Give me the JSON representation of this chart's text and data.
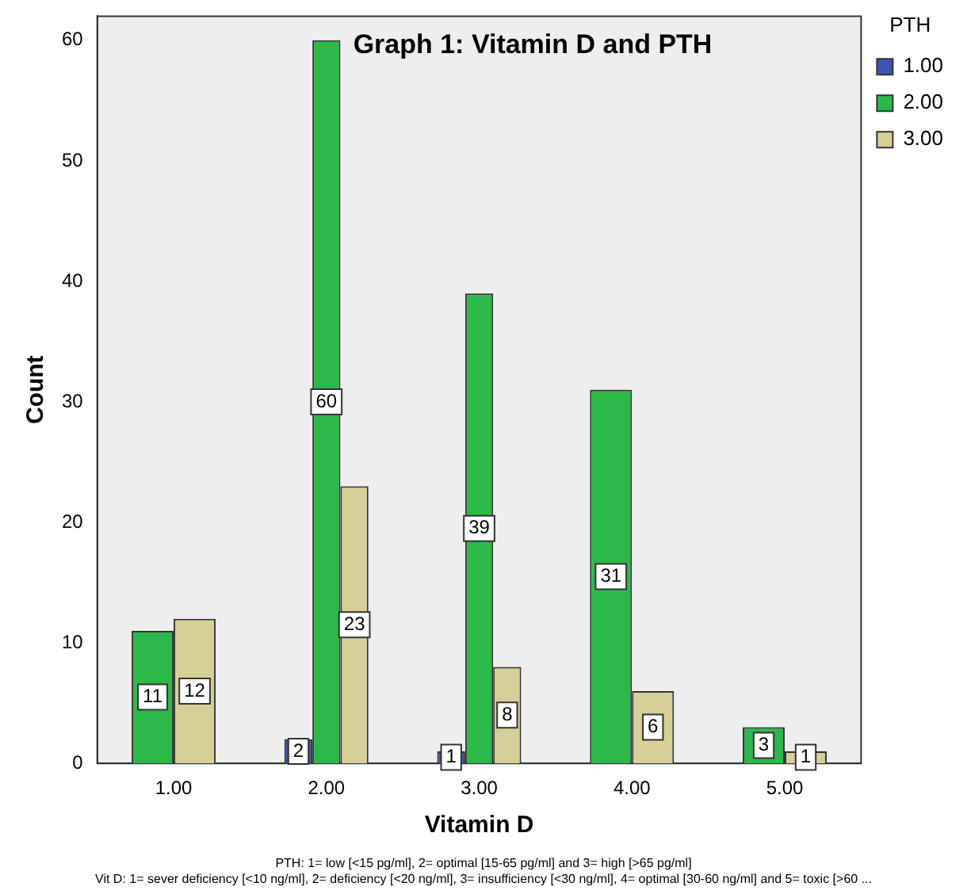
{
  "chart_data": {
    "type": "bar",
    "title": "Graph 1: Vitamin D and PTH",
    "xlabel": "Vitamin D",
    "ylabel": "Count",
    "legend_title": "PTH",
    "categories": [
      "1.00",
      "2.00",
      "3.00",
      "4.00",
      "5.00"
    ],
    "series": [
      {
        "name": "1.00",
        "color": "#3b55b0",
        "values": [
          null,
          2,
          1,
          null,
          null
        ]
      },
      {
        "name": "2.00",
        "color": "#2db84a",
        "values": [
          11,
          60,
          39,
          31,
          3
        ]
      },
      {
        "name": "3.00",
        "color": "#d6cf98",
        "values": [
          12,
          23,
          8,
          6,
          1
        ]
      }
    ],
    "ylim": [
      0,
      62
    ],
    "yticks": [
      0,
      10,
      20,
      30,
      40,
      50,
      60
    ],
    "grid": false,
    "legend": "top right",
    "data_labels": true,
    "annotations": [
      "PTH: 1= low [<15 pg/ml], 2= optimal [15-65 pg/ml] and 3= high [>65 pg/ml]",
      "Vit D: 1= sever deficiency [<10 ng/ml], 2= deficiency [<20 ng/ml], 3= insufficiency [<30 ng/ml], 4= optimal [30-60 ng/ml] and 5= toxic [>60 ..."
    ]
  }
}
